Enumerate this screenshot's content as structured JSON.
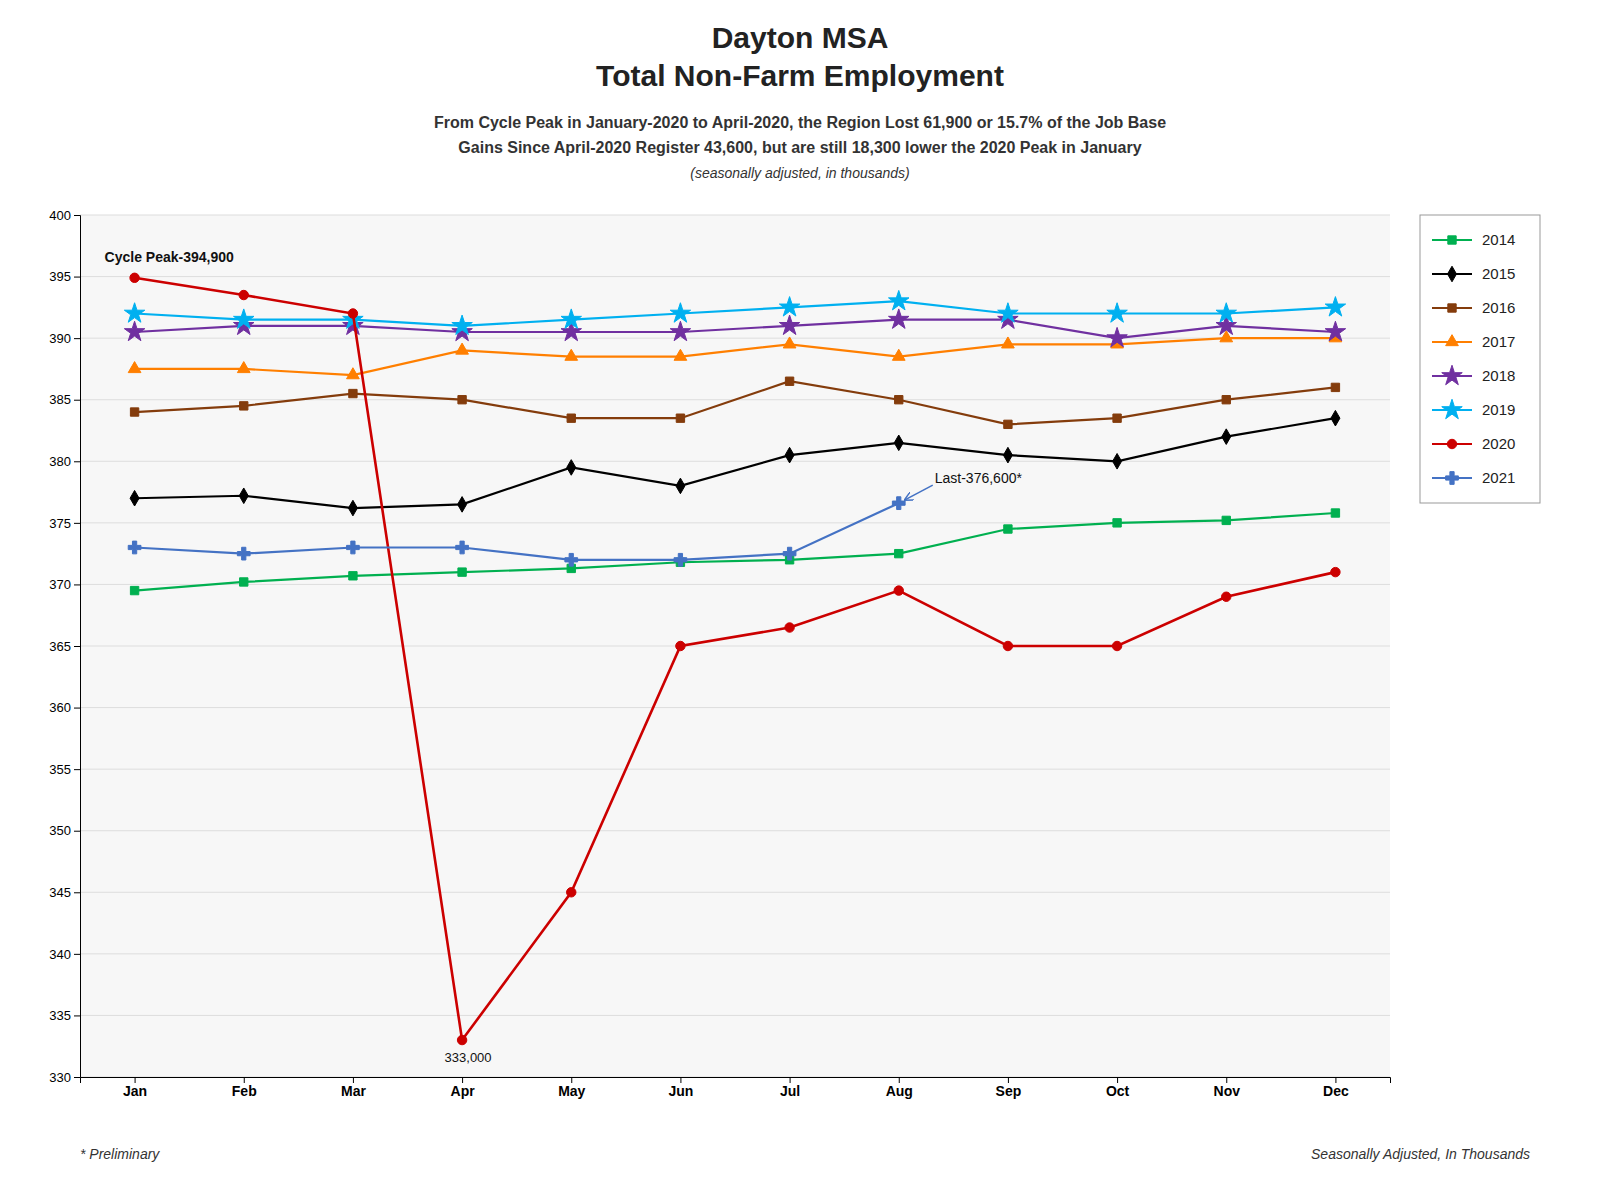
{
  "chart_data": {
    "type": "line",
    "title": [
      "Dayton MSA",
      "Total Non-Farm Employment"
    ],
    "subtitle": [
      "From Cycle Peak in January-2020 to April-2020, the Region Lost 61,900 or 15.7% of the Job Base",
      "Gains Since April-2020 Register 43,600, but are still 18,300 lower the 2020 Peak in January",
      "(seasonally adjusted, in thousands)"
    ],
    "categories": [
      "Jan",
      "Feb",
      "Mar",
      "Apr",
      "May",
      "Jun",
      "Jul",
      "Aug",
      "Sep",
      "Oct",
      "Nov",
      "Dec"
    ],
    "series": [
      {
        "name": "2014",
        "color": "#00b050",
        "marker": "square",
        "values": [
          369.5,
          370.2,
          370.7,
          371.0,
          371.3,
          371.8,
          372.0,
          372.5,
          374.5,
          375.0,
          375.2,
          375.8
        ]
      },
      {
        "name": "2015",
        "color": "#000000",
        "marker": "diamond",
        "values": [
          377.0,
          377.2,
          376.2,
          376.5,
          379.5,
          378.0,
          380.5,
          381.5,
          380.5,
          380.0,
          382.0,
          383.5
        ]
      },
      {
        "name": "2016",
        "color": "#843c0c",
        "marker": "square",
        "values": [
          384.0,
          384.5,
          385.5,
          385.0,
          383.5,
          383.5,
          386.5,
          385.0,
          383.0,
          383.5,
          385.0,
          386.0
        ]
      },
      {
        "name": "2017",
        "color": "#ff7f00",
        "marker": "triangle",
        "values": [
          387.5,
          387.5,
          387.0,
          389.0,
          388.5,
          388.5,
          389.5,
          388.5,
          389.5,
          389.5,
          390.0,
          390.0
        ]
      },
      {
        "name": "2018",
        "color": "#7030a0",
        "marker": "star",
        "values": [
          390.5,
          391.0,
          391.0,
          390.5,
          390.5,
          390.5,
          391.0,
          391.5,
          391.5,
          390.0,
          391.0,
          390.5
        ]
      },
      {
        "name": "2019",
        "color": "#00b0f0",
        "marker": "star",
        "values": [
          392.0,
          391.5,
          391.5,
          391.0,
          391.5,
          392.0,
          392.5,
          393.0,
          392.0,
          392.0,
          392.0,
          392.5
        ]
      },
      {
        "name": "2020",
        "color": "#cc0000",
        "marker": "circle",
        "values": [
          394.9,
          393.5,
          392.0,
          333.0,
          345.0,
          365.0,
          366.5,
          369.5,
          365.0,
          365.0,
          369.0,
          371.0
        ]
      },
      {
        "name": "2021",
        "color": "#4472c4",
        "marker": "cross",
        "values": [
          373.0,
          372.5,
          373.0,
          373.0,
          372.0,
          372.0,
          372.5,
          376.6,
          null,
          null,
          null,
          null
        ]
      }
    ],
    "ylim": [
      330,
      400
    ],
    "yticks": [
      330,
      335,
      340,
      345,
      350,
      355,
      360,
      365,
      370,
      375,
      380,
      385,
      390,
      395,
      400
    ],
    "grid": true,
    "legend": "right",
    "annotations": [
      {
        "text": "Cycle Peak-394,900",
        "x": "Jan",
        "y": 394.9
      },
      {
        "text": "333,000",
        "x": "Apr",
        "y": 333.0
      },
      {
        "text": "Last-376,600*",
        "x": "Aug",
        "y": 376.6,
        "series": "2021"
      }
    ],
    "footnotes": [
      "* Preliminary",
      "Seasonally Adjusted, In Thousands"
    ]
  }
}
